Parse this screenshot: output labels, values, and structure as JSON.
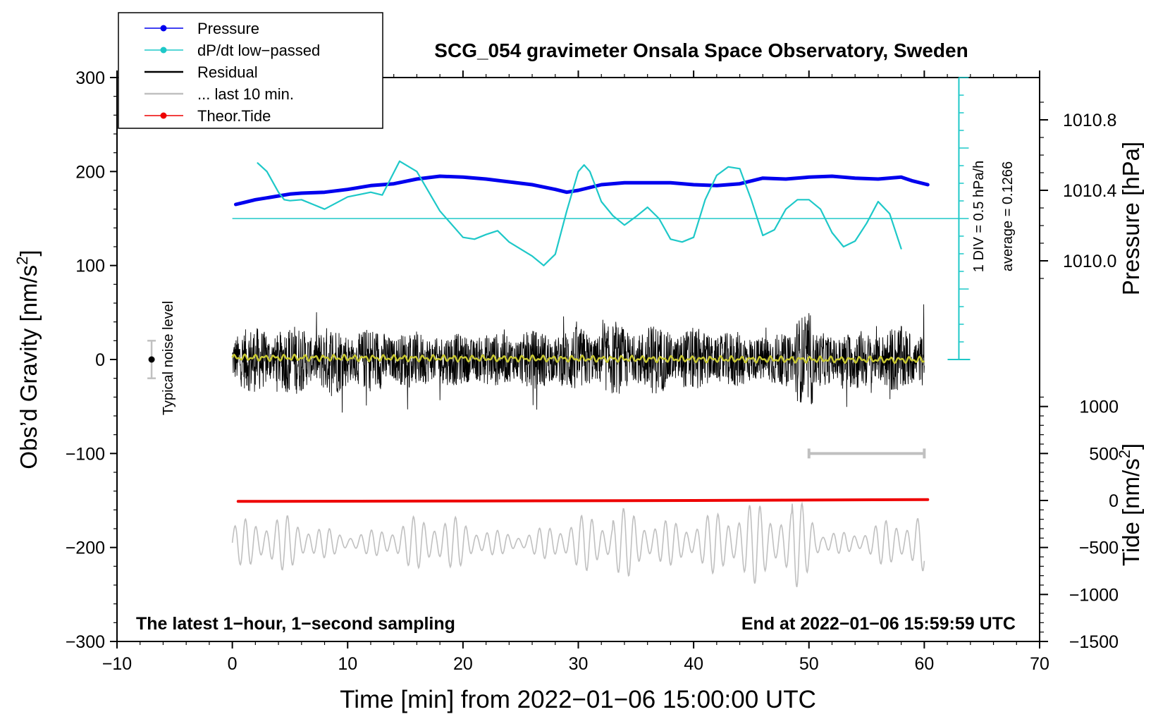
{
  "chart_data": {
    "type": "line",
    "title": "SCG_054 gravimeter Onsala Space Observatory, Sweden",
    "xlabel": "Time [min] from 2022−01−06 15:00:00 UTC",
    "ylabel": "Obs’d Gravity [nm/s",
    "ylabel_sup": "2",
    "ylabel_end": "]",
    "xlim": [
      -10,
      70
    ],
    "ylim": [
      -300,
      300
    ],
    "x_ticks": [
      -10,
      0,
      10,
      20,
      30,
      40,
      50,
      60,
      70
    ],
    "x_tick_labels": [
      "−10",
      "0",
      "10",
      "20",
      "30",
      "40",
      "50",
      "60",
      "70"
    ],
    "y_ticks": [
      -300,
      -200,
      -100,
      0,
      100,
      200,
      300
    ],
    "y_tick_labels": [
      "−300",
      "−200",
      "−100",
      "0",
      "100",
      "200",
      "300"
    ],
    "pressure_axis": {
      "label": "Pressure [hPa]",
      "ticks": [
        1010.0,
        1010.4,
        1010.8
      ],
      "tick_labels": [
        "1010.0",
        "1010.4",
        "1010.8"
      ],
      "gravity_per_hpa": -42.0,
      "gravity_at_1010": 105
    },
    "tide_axis": {
      "label": "Tide [nm/s",
      "label_sup": "2",
      "label_end": "]",
      "ticks": [
        -1500,
        -1000,
        -500,
        0,
        500,
        1000
      ],
      "tick_labels": [
        "−1500",
        "−1000",
        "−500",
        "0",
        "500",
        "1000"
      ],
      "gravity_at_zero": -150,
      "gravity_per_unit": 0.1
    },
    "dpdt_scale": {
      "label_div": "1 DIV = 0.5 hPa/h",
      "label_avg": "average = 0.1266",
      "x": 63,
      "y_bottom": 0,
      "y_top": 300,
      "minor_step": 18.75,
      "major_step": 75
    },
    "noise_bar": {
      "label": "Typical noise level",
      "x": -7,
      "half_range": 20
    },
    "window_bar": {
      "x_start": 50,
      "x_end": 60,
      "y": -100
    },
    "legend": [
      {
        "label": "Pressure",
        "color": "#0000ee",
        "marker": true
      },
      {
        "label": "dP/dt low−passed",
        "color": "#1ec8c8",
        "marker": true
      },
      {
        "label": "Residual",
        "color": "#000000",
        "marker": false
      },
      {
        "label": "... last 10 min.",
        "color": "#c0c0c0",
        "marker": false
      },
      {
        "label": "Theor.Tide",
        "color": "#ee0000",
        "marker": true
      }
    ],
    "annotations": {
      "bottom_left": "The latest 1−hour, 1−second sampling",
      "bottom_right": "End at 2022−01−06 15:59:59 UTC"
    },
    "series": [
      {
        "name": "Pressure",
        "color": "#0000ee",
        "x": [
          0.3,
          1,
          2,
          3,
          4,
          5,
          6,
          8,
          10,
          12,
          14,
          16,
          18,
          20,
          22,
          24,
          26,
          28,
          29,
          30,
          31,
          32,
          34,
          36,
          38,
          40,
          42,
          44,
          46,
          48,
          50,
          52,
          54,
          56,
          58,
          59,
          60.3
        ],
        "y": [
          165,
          167,
          170,
          172,
          174,
          176,
          177,
          178,
          181,
          185,
          187,
          192,
          195,
          194,
          192,
          189,
          186,
          181,
          178,
          180,
          183,
          186,
          188,
          188,
          188,
          186,
          185,
          187,
          193,
          192,
          194,
          195,
          193,
          192,
          194,
          190,
          186
        ]
      },
      {
        "name": "dP/dt low−passed",
        "color": "#1ec8c8",
        "x": [
          2.2,
          3,
          4,
          4.5,
          5,
          6,
          7,
          8,
          10,
          12,
          13,
          14.5,
          16,
          18,
          20,
          21,
          22,
          23,
          24,
          26,
          27,
          28,
          29,
          30,
          30.5,
          31,
          32,
          33,
          34,
          35,
          36,
          37,
          38,
          39,
          40,
          41,
          42,
          43,
          44,
          45,
          46,
          47,
          48,
          49,
          50,
          51,
          52,
          53,
          54,
          55,
          56,
          57,
          58
        ],
        "y": [
          209,
          200,
          178,
          170,
          169,
          170,
          165,
          160,
          173,
          178,
          175,
          211,
          200,
          158,
          130,
          128,
          133,
          137,
          125,
          110,
          100,
          112,
          158,
          200,
          207,
          200,
          168,
          153,
          143,
          152,
          162,
          150,
          128,
          125,
          130,
          170,
          196,
          205,
          203,
          170,
          132,
          138,
          160,
          170,
          170,
          160,
          135,
          120,
          126,
          145,
          168,
          155,
          118
        ]
      },
      {
        "name": "Theor.Tide",
        "color": "#ee0000",
        "x": [
          0.5,
          20,
          40,
          60.3
        ],
        "y": [
          -151,
          -150.5,
          -150,
          -149
        ]
      }
    ],
    "zero_line_gravity": 150
  }
}
